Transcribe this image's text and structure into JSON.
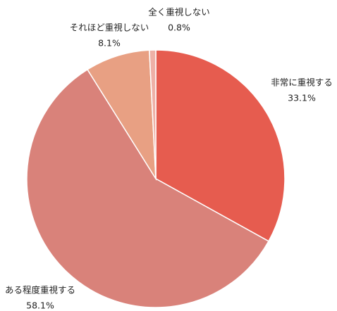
{
  "chart_data": {
    "type": "pie",
    "categories": [
      "非常に重視する",
      "ある程度重視する",
      "それほど重視しない",
      "全く重視しない"
    ],
    "values": [
      33.1,
      58.1,
      8.1,
      0.8
    ],
    "value_labels": [
      "33.1%",
      "58.1%",
      "8.1%",
      "0.8%"
    ],
    "colors": [
      "#e65c4f",
      "#d9827a",
      "#e8a083",
      "#eeb0a6"
    ]
  }
}
